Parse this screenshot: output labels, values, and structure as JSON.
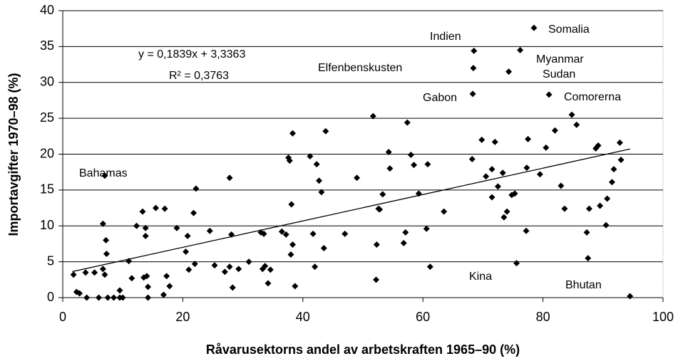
{
  "chart_data": {
    "type": "scatter",
    "xlabel": "Råvarusektorns andel av arbetskraften 1965–90 (%)",
    "ylabel": "Importavgifter 1970–98 (%)",
    "xlim": [
      0,
      100
    ],
    "ylim": [
      0,
      40
    ],
    "xticks": [
      0,
      20,
      40,
      60,
      80,
      100
    ],
    "yticks": [
      0,
      5,
      10,
      15,
      20,
      25,
      30,
      35,
      40
    ],
    "grid": true,
    "color": "#000000",
    "x": [
      1.8,
      2.3,
      2.8,
      3.8,
      4,
      5.3,
      6,
      6.7,
      6.7,
      7,
      7.2,
      7.3,
      7.5,
      8.5,
      9.5,
      9.5,
      10,
      7,
      11,
      11.5,
      12.3,
      13.3,
      13.5,
      13.8,
      13.8,
      14,
      14.2,
      14.2,
      15.5,
      17,
      16.8,
      17.3,
      17.8,
      19,
      20.5,
      20.8,
      21,
      21.8,
      22,
      22.2,
      24.5,
      25.3,
      27,
      27.8,
      27.8,
      28.1,
      28.3,
      29.3,
      31,
      33,
      33.3,
      33.5,
      33.7,
      34.2,
      34.6,
      36.5,
      37.2,
      37.6,
      37.8,
      38,
      38.1,
      38.3,
      38.3,
      38.7,
      41.2,
      41.7,
      42,
      42.3,
      42.7,
      43.1,
      43.5,
      43.8,
      47,
      49,
      51.7,
      52.2,
      52.3,
      52.6,
      52.8,
      53.3,
      54.3,
      54.5,
      56.8,
      57.1,
      57.4,
      58,
      58.5,
      59.3,
      60.6,
      60.8,
      61.2,
      63.5,
      68.2,
      68.5,
      68.4,
      68.3,
      69.8,
      70.5,
      71.5,
      71.5,
      72,
      72.5,
      73.5,
      73.3,
      74,
      74.3,
      74.8,
      75.3,
      75.6,
      76.2,
      77.2,
      77.3,
      77.5,
      78.5,
      79.5,
      80.5,
      81,
      82,
      83,
      83.6,
      84.8,
      85.6,
      87.3,
      87.5,
      87.7,
      88.8,
      89.2,
      89.5,
      90.5,
      90.7,
      91.5,
      91.8,
      92.8,
      93,
      94.5
    ],
    "values": [
      3.2,
      0.8,
      0.6,
      3.5,
      0,
      3.5,
      0,
      10.3,
      4,
      3.2,
      8,
      6.1,
      0,
      0,
      1,
      0,
      0,
      17,
      5.1,
      2.7,
      10,
      12,
      2.8,
      8.6,
      9.7,
      3,
      1.5,
      0,
      12.5,
      12.4,
      0.4,
      3,
      1.6,
      9.7,
      6.4,
      8.6,
      3.9,
      11.8,
      4.7,
      15.2,
      9.3,
      4.5,
      3.6,
      4.3,
      16.7,
      8.8,
      1.4,
      4,
      5,
      9.1,
      4,
      8.9,
      4.4,
      2,
      3.9,
      9.2,
      8.8,
      19.5,
      19.1,
      6,
      13,
      7.4,
      22.9,
      1.6,
      19.7,
      8.9,
      4.3,
      18.6,
      16.3,
      14.7,
      6.9,
      23.2,
      8.9,
      16.7,
      25.3,
      2.5,
      7.4,
      12.4,
      12.3,
      14.4,
      20.3,
      18,
      7.6,
      9.1,
      24.4,
      19.9,
      18.5,
      14.5,
      9.6,
      18.6,
      4.3,
      12,
      19.3,
      34.4,
      32,
      28.4,
      22,
      16.9,
      17.9,
      14,
      21.7,
      15.5,
      11.2,
      17.4,
      12,
      31.5,
      14.3,
      14.5,
      4.8,
      34.5,
      9.3,
      18.1,
      22.1,
      37.6,
      17.2,
      20.9,
      28.3,
      23.3,
      15.6,
      12.4,
      25.5,
      24.1,
      9.1,
      5.5,
      12.4,
      20.8,
      21.2,
      12.8,
      10.1,
      13.8,
      16.1,
      17.9,
      21.6,
      19.2,
      0.2
    ],
    "annotations": [
      "Bahamas",
      "Indien",
      "Somalia",
      "Myanmar",
      "Sudan",
      "Comorerna",
      "Gabon",
      "Elfenbenskusten",
      "Kina",
      "Bhutan"
    ],
    "trendline": {
      "equation": "y = 0,1839x + 3,3363",
      "r2": "R² = 0,3763",
      "slope": 0.1839,
      "intercept": 3.3363,
      "x_range": [
        1.6,
        94.5
      ]
    }
  }
}
